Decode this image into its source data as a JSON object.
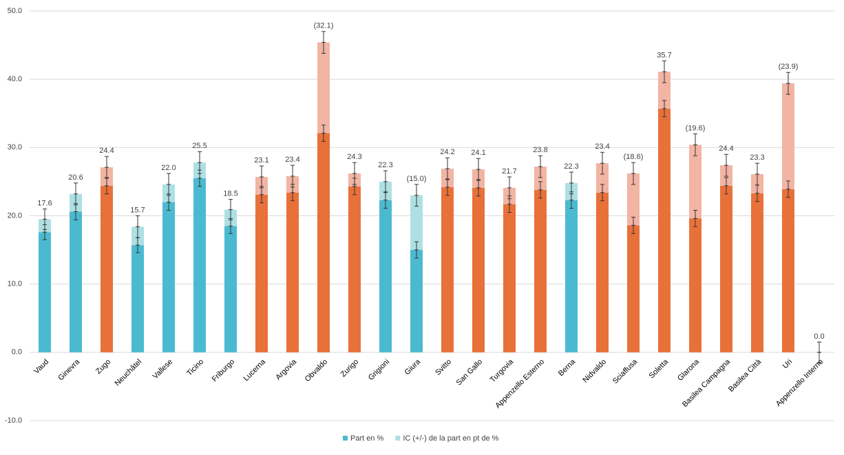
{
  "chart_data": {
    "type": "stacked-bar",
    "categories": [
      "Vaud",
      "Ginevra",
      "Zugo",
      "Neuchâtel",
      "Vallese",
      "Ticino",
      "Friburgo",
      "Lucerna",
      "Argovia",
      "Obvaldo",
      "Zurigo",
      "Grigioni",
      "Giura",
      "Svitto",
      "San Gallo",
      "Turgovia",
      "Appenzello Esterno",
      "Berna",
      "Nidvaldo",
      "Sciaffusa",
      "Soletta",
      "Glarona",
      "Basilea Campagna",
      "Basilea Città",
      "Uri",
      "Appenzello Interno"
    ],
    "series": [
      {
        "name": "Part en %",
        "color": "#4bbad0",
        "colors": [
          "#4bbad0",
          "#4bbad0",
          "#e8713a",
          "#4bbad0",
          "#4bbad0",
          "#4bbad0",
          "#4bbad0",
          "#e8713a",
          "#e8713a",
          "#e8713a",
          "#e8713a",
          "#4bbad0",
          "#4bbad0",
          "#e8713a",
          "#e8713a",
          "#e8713a",
          "#e8713a",
          "#4bbad0",
          "#e8713a",
          "#e8713a",
          "#e8713a",
          "#e8713a",
          "#e8713a",
          "#e8713a",
          "#e8713a",
          "#e8713a"
        ],
        "values": [
          17.6,
          20.6,
          24.4,
          15.7,
          22.0,
          25.5,
          18.5,
          23.1,
          23.4,
          32.1,
          24.3,
          22.3,
          15.0,
          24.2,
          24.1,
          21.7,
          23.8,
          22.3,
          23.4,
          18.6,
          35.7,
          19.6,
          24.4,
          23.3,
          23.9,
          0.0
        ],
        "value_labels": [
          "17.6",
          "20.6",
          "24.4",
          "15.7",
          "22.0",
          "25.5",
          "18.5",
          "23.1",
          "23.4",
          "(32.1)",
          "24.3",
          "22.3",
          "(15.0)",
          "24.2",
          "24.1",
          "21.7",
          "23.8",
          "22.3",
          "23.4",
          "(18.6)",
          "35.7",
          "(19.6)",
          "24.4",
          "23.3",
          "(23.9)",
          "0.0"
        ],
        "errors": [
          1.1,
          1.2,
          1.2,
          1.1,
          1.2,
          1.2,
          1.1,
          1.2,
          1.2,
          1.2,
          1.2,
          1.2,
          1.2,
          1.2,
          1.2,
          1.2,
          1.2,
          1.2,
          1.2,
          1.2,
          1.2,
          1.2,
          1.2,
          1.2,
          1.2,
          1.5
        ]
      },
      {
        "name": "IC (+/-) de la part  en pt de %",
        "color": "#aee0e3",
        "colors": [
          "#aee0e3",
          "#aee0e3",
          "#f2b4a3",
          "#aee0e3",
          "#aee0e3",
          "#aee0e3",
          "#aee0e3",
          "#f2b4a3",
          "#f2b4a3",
          "#f2b4a3",
          "#f2b4a3",
          "#aee0e3",
          "#aee0e3",
          "#f2b4a3",
          "#f2b4a3",
          "#f2b4a3",
          "#f2b4a3",
          "#aee0e3",
          "#f2b4a3",
          "#f2b4a3",
          "#f2b4a3",
          "#f2b4a3",
          "#f2b4a3",
          "#f2b4a3",
          "#f2b4a3",
          "#f2b4a3"
        ],
        "values": [
          1.9,
          2.6,
          2.7,
          2.7,
          2.6,
          2.3,
          2.4,
          2.6,
          2.4,
          13.3,
          1.9,
          2.7,
          8.0,
          2.7,
          2.7,
          2.4,
          3.4,
          2.5,
          4.3,
          7.6,
          5.4,
          10.8,
          3.0,
          2.8,
          15.5,
          0.0
        ],
        "errors": [
          1.5,
          1.6,
          1.6,
          1.6,
          1.6,
          1.6,
          1.5,
          1.6,
          1.6,
          1.6,
          1.6,
          1.6,
          1.6,
          1.6,
          1.6,
          1.6,
          1.6,
          1.6,
          1.6,
          1.6,
          1.6,
          1.6,
          1.6,
          1.6,
          1.6,
          1.5
        ]
      }
    ],
    "ylim": [
      -10,
      50
    ],
    "yticks": [
      {
        "value": -10,
        "label": "-10.0"
      },
      {
        "value": 0,
        "label": "0.0"
      },
      {
        "value": 10,
        "label": "10.0"
      },
      {
        "value": 20,
        "label": "20.0"
      },
      {
        "value": 30,
        "label": "30.0"
      },
      {
        "value": 40,
        "label": "40.0"
      },
      {
        "value": 50,
        "label": "50.0"
      }
    ],
    "grid": true,
    "legend": "bottom"
  }
}
